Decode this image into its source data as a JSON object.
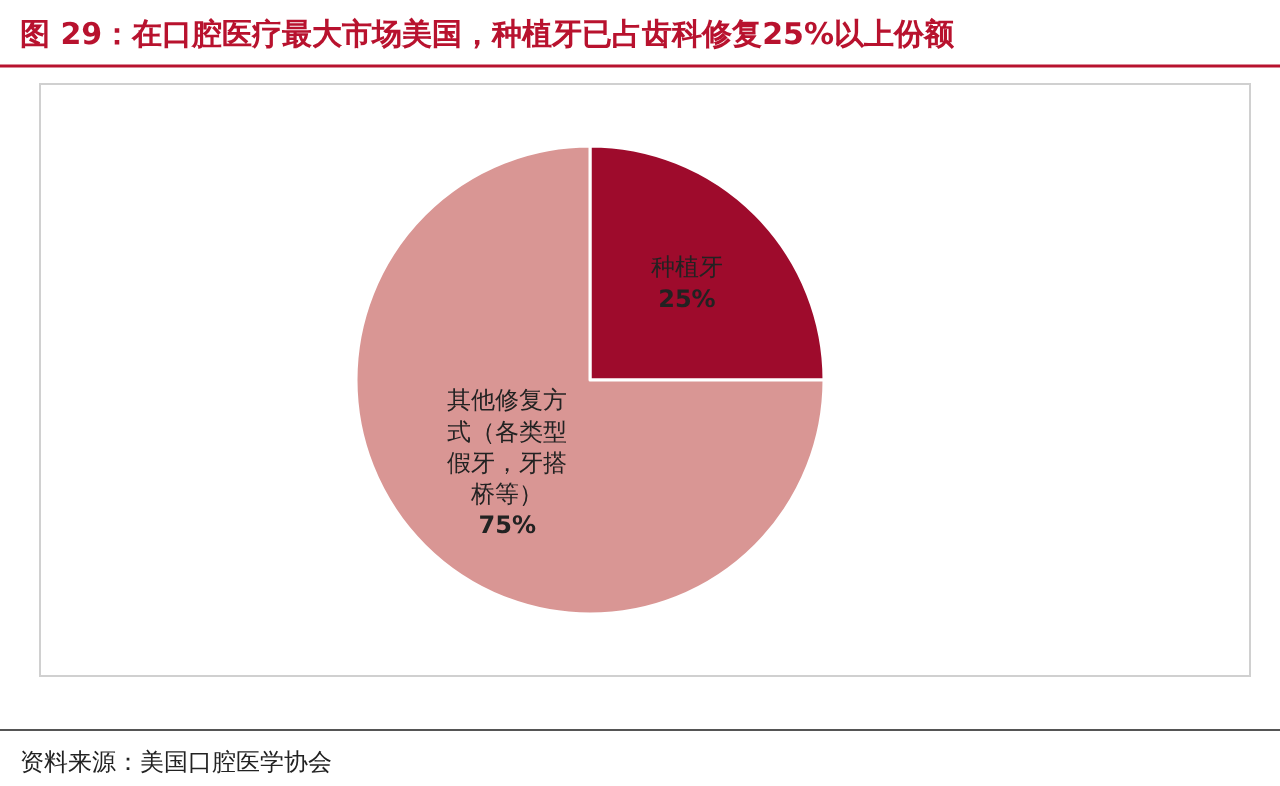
{
  "chart_data": {
    "type": "pie",
    "title": "图 29：在口腔医疗最大市场美国，种植牙已占齿科修复25%以上份额",
    "categories": [
      "种植牙",
      "其他修复方式（各类型假牙，牙搭桥等）"
    ],
    "values": [
      25,
      75
    ],
    "colors": [
      "#9e0b2c",
      "#d99694"
    ],
    "value_labels": [
      "25%",
      "75%"
    ],
    "legend": false,
    "annotations": [
      "资料来源：美国口腔医学协会"
    ]
  }
}
